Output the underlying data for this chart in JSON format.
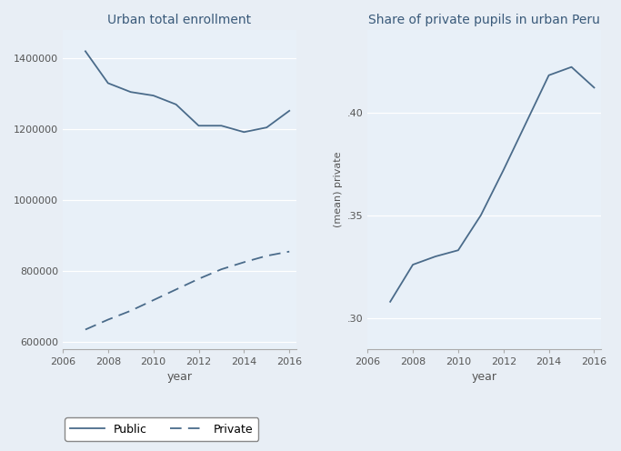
{
  "years": [
    2007,
    2008,
    2009,
    2010,
    2011,
    2012,
    2013,
    2014,
    2015,
    2016
  ],
  "public": [
    1420000,
    1330000,
    1305000,
    1295000,
    1270000,
    1210000,
    1210000,
    1192000,
    1205000,
    1252000
  ],
  "private": [
    635000,
    663000,
    688000,
    718000,
    748000,
    778000,
    805000,
    825000,
    843000,
    855000
  ],
  "share_years": [
    2007,
    2008,
    2009,
    2010,
    2011,
    2012,
    2013,
    2014,
    2015,
    2016
  ],
  "share_private": [
    0.308,
    0.326,
    0.33,
    0.333,
    0.35,
    0.372,
    0.395,
    0.418,
    0.422,
    0.412
  ],
  "left_title": "Urban total enrollment",
  "right_title": "Share of private pupils in urban Peru",
  "left_xlabel": "year",
  "right_xlabel": "year",
  "right_ylabel": "(mean) private",
  "line_color": "#4a6b8a",
  "plot_bg_color": "#e8f0f8",
  "fig_bg": "#e8eef5",
  "left_ylim": [
    580000,
    1480000
  ],
  "left_yticks": [
    600000,
    800000,
    1000000,
    1200000,
    1400000
  ],
  "right_ylim": [
    0.285,
    0.44
  ],
  "right_yticks": [
    0.3,
    0.35,
    0.4
  ],
  "xticks": [
    2006,
    2008,
    2010,
    2012,
    2014,
    2016
  ],
  "legend_public": "Public",
  "legend_private": "Private",
  "title_color": "#3a5a7a",
  "tick_color": "#555555",
  "spine_color": "#aaaaaa"
}
